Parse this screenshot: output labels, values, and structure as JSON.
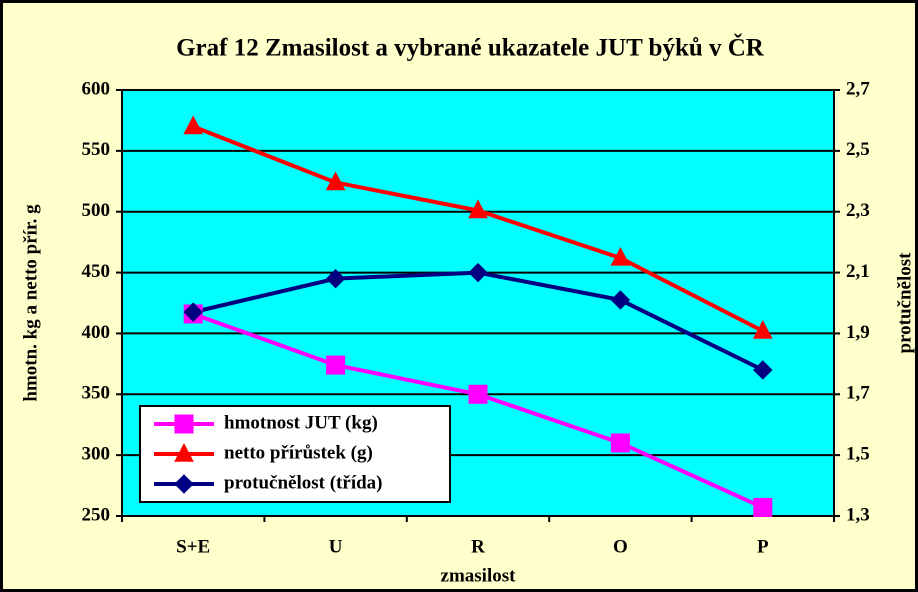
{
  "chart_data": {
    "type": "line",
    "title": "Graf 12  Zmasilost a vybrané ukazatele JUT býků v ČR",
    "x_label": "zmasilost",
    "y_label": "hmotn. kg a netto přír. g",
    "y2_label": "protučnělost",
    "categories": [
      "S+E",
      "U",
      "R",
      "O",
      "P"
    ],
    "series": [
      {
        "name": "hmotnost JUT (kg)",
        "color": "#ff00ff",
        "marker": "square",
        "values": [
          416,
          374,
          350,
          310,
          257
        ]
      },
      {
        "name": "netto přírůstek (g)",
        "color": "#ff0000",
        "marker": "triangle",
        "values": [
          570,
          524,
          501,
          462,
          402
        ]
      },
      {
        "name": "protučnělost (třída)",
        "color": "#000080",
        "marker": "diamond",
        "axis": "y2",
        "values": [
          1.97,
          2.08,
          2.1,
          2.01,
          1.78
        ]
      }
    ],
    "ylim": [
      250,
      600
    ],
    "yticks": [
      250,
      300,
      350,
      400,
      450,
      500,
      550,
      600
    ],
    "y2lim": [
      1.3,
      2.7
    ],
    "y2ticks": [
      {
        "value": 1.3,
        "label": "1,3"
      },
      {
        "value": 1.5,
        "label": "1,5"
      },
      {
        "value": 1.7,
        "label": "1,7"
      },
      {
        "value": 1.9,
        "label": "1,9"
      },
      {
        "value": 2.1,
        "label": "2,1"
      },
      {
        "value": 2.3,
        "label": "2,3"
      },
      {
        "value": 2.5,
        "label": "2,5"
      },
      {
        "value": 2.7,
        "label": "2,7"
      }
    ],
    "grid": true,
    "legend": "lower left",
    "background": "#ffffcc",
    "plot_background": "#00ffff"
  }
}
